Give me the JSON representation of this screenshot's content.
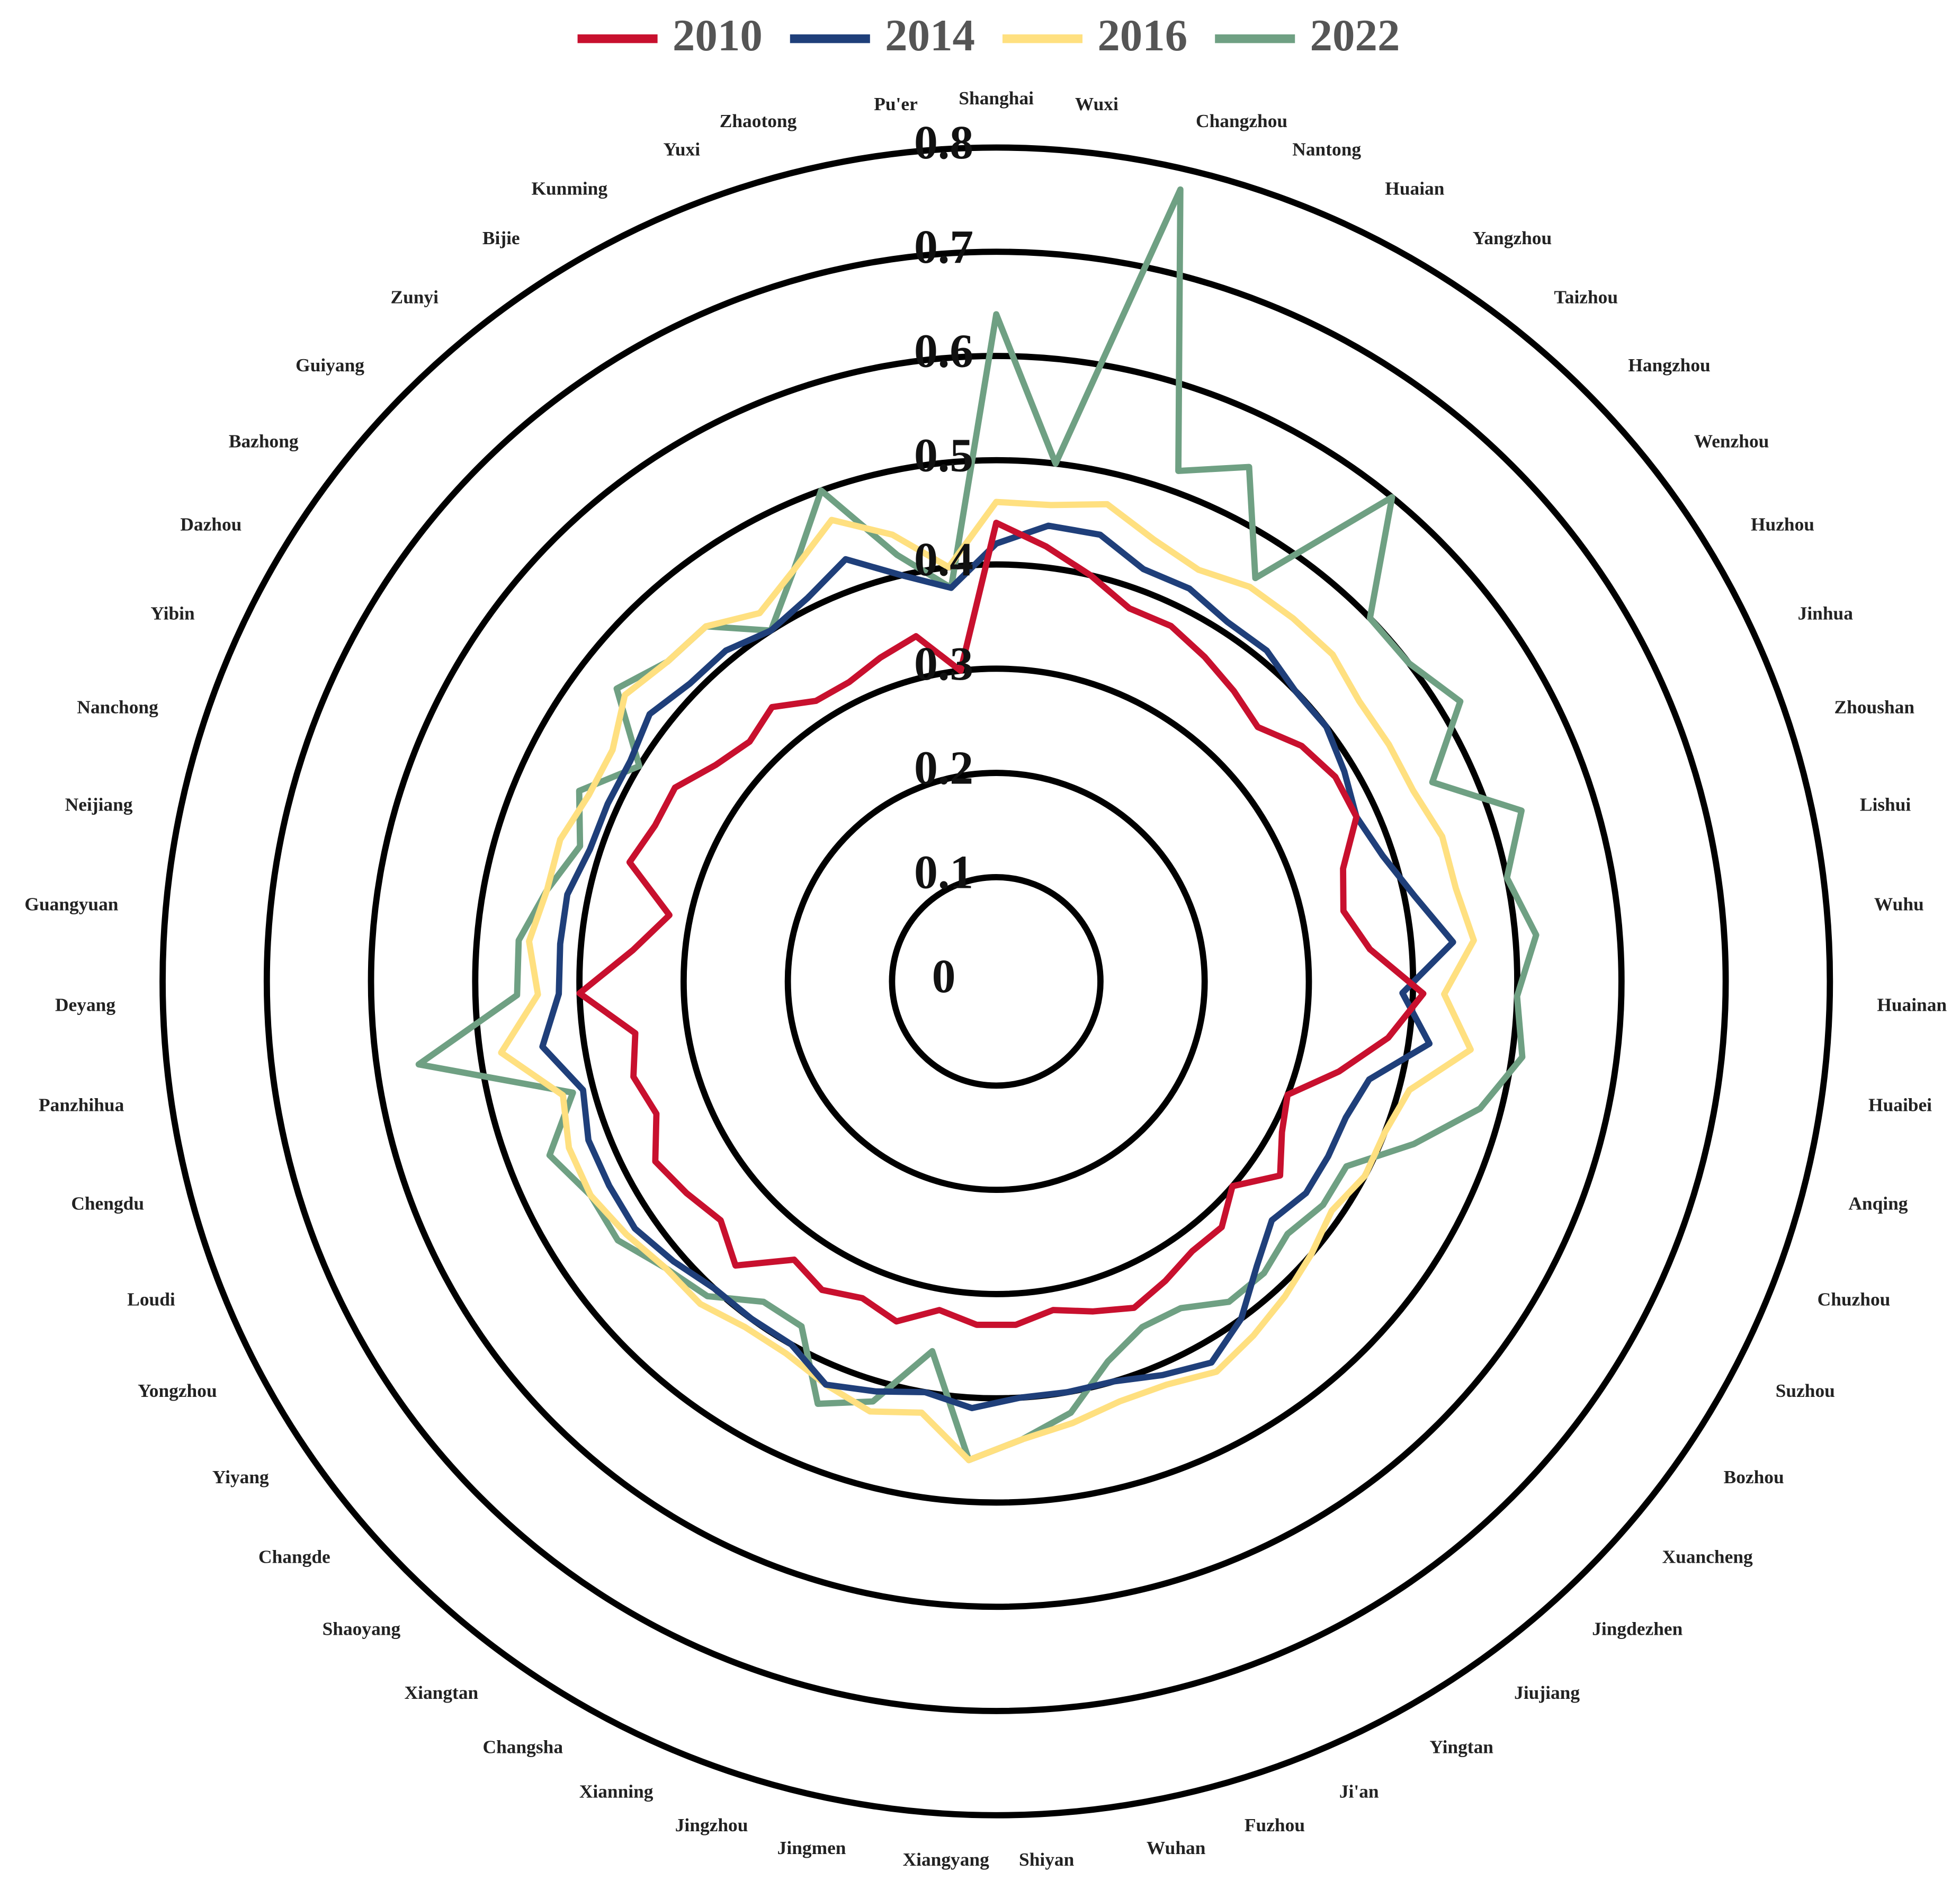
{
  "chart_data": {
    "type": "radar",
    "categories": [
      "Shanghai",
      "Wuxi",
      "Changzhou",
      "Nantong",
      "Huaian",
      "Yangzhou",
      "Taizhou",
      "Hangzhou",
      "Wenzhou",
      "Huzhou",
      "Jinhua",
      "Zhoushan",
      "Lishui",
      "Wuhu",
      "Huainan",
      "Huaibei",
      "Anqing",
      "Chuzhou",
      "Suzhou",
      "Bozhou",
      "Xuancheng",
      "Jingdezhen",
      "Jiujiang",
      "Yingtan",
      "Ji'an",
      "Fuzhou",
      "Wuhan",
      "Shiyan",
      "Xiangyang",
      "Jingmen",
      "Jingzhou",
      "Xianning",
      "Changsha",
      "Xiangtan",
      "Shaoyang",
      "Changde",
      "Yiyang",
      "Yongzhou",
      "Loudi",
      "Chengdu",
      "Panzhihua",
      "Deyang",
      "Guangyuan",
      "Neijiang",
      "Nanchong",
      "Yibin",
      "Dazhou",
      "Bazhong",
      "Guiyang",
      "Zunyi",
      "Bijie",
      "Kunming",
      "Yuxi",
      "Zhaotong",
      "Pu'er"
    ],
    "series": [
      {
        "name": "2010",
        "color": "#c8102e",
        "values": [
          0.44,
          0.42,
          0.4,
          0.38,
          0.38,
          0.37,
          0.36,
          0.35,
          0.37,
          0.38,
          0.38,
          0.35,
          0.34,
          0.36,
          0.41,
          0.38,
          0.34,
          0.3,
          0.31,
          0.33,
          0.3,
          0.32,
          0.32,
          0.33,
          0.34,
          0.33,
          0.32,
          0.33,
          0.33,
          0.32,
          0.34,
          0.33,
          0.34,
          0.33,
          0.37,
          0.35,
          0.36,
          0.37,
          0.35,
          0.36,
          0.35,
          0.4,
          0.35,
          0.32,
          0.37,
          0.36,
          0.36,
          0.34,
          0.33,
          0.34,
          0.32,
          0.32,
          0.33,
          0.34,
          0.3
        ]
      },
      {
        "name": "2014",
        "color": "#1f3f7a",
        "values": [
          0.42,
          0.44,
          0.44,
          0.42,
          0.42,
          0.41,
          0.41,
          0.4,
          0.4,
          0.39,
          0.38,
          0.39,
          0.41,
          0.44,
          0.39,
          0.42,
          0.37,
          0.36,
          0.36,
          0.36,
          0.35,
          0.37,
          0.4,
          0.42,
          0.41,
          0.4,
          0.4,
          0.4,
          0.41,
          0.4,
          0.41,
          0.42,
          0.4,
          0.4,
          0.4,
          0.41,
          0.42,
          0.42,
          0.42,
          0.41,
          0.44,
          0.42,
          0.42,
          0.42,
          0.41,
          0.41,
          0.41,
          0.42,
          0.41,
          0.41,
          0.4,
          0.41,
          0.43,
          0.4,
          0.38
        ]
      },
      {
        "name": "2016",
        "color": "#ffe080",
        "values": [
          0.46,
          0.46,
          0.47,
          0.45,
          0.44,
          0.45,
          0.45,
          0.45,
          0.44,
          0.44,
          0.44,
          0.45,
          0.45,
          0.46,
          0.43,
          0.46,
          0.41,
          0.4,
          0.4,
          0.39,
          0.4,
          0.41,
          0.42,
          0.43,
          0.42,
          0.42,
          0.43,
          0.44,
          0.46,
          0.42,
          0.43,
          0.42,
          0.41,
          0.41,
          0.42,
          0.42,
          0.43,
          0.44,
          0.44,
          0.43,
          0.48,
          0.44,
          0.45,
          0.44,
          0.44,
          0.43,
          0.43,
          0.45,
          0.44,
          0.44,
          0.42,
          0.44,
          0.47,
          0.44,
          0.4
        ]
      },
      {
        "name": "2022",
        "color": "#6fa083",
        "values": [
          0.64,
          0.5,
          0.78,
          0.52,
          0.55,
          0.46,
          0.6,
          0.5,
          0.5,
          0.52,
          0.46,
          0.53,
          0.5,
          0.52,
          0.5,
          0.51,
          0.48,
          0.43,
          0.38,
          0.38,
          0.37,
          0.38,
          0.38,
          0.36,
          0.36,
          0.38,
          0.42,
          0.44,
          0.46,
          0.36,
          0.42,
          0.44,
          0.38,
          0.38,
          0.41,
          0.42,
          0.44,
          0.44,
          0.46,
          0.42,
          0.56,
          0.46,
          0.46,
          0.44,
          0.42,
          0.44,
          0.4,
          0.46,
          0.44,
          0.44,
          0.4,
          0.44,
          0.5,
          0.42,
          0.38
        ]
      }
    ],
    "ylim": [
      0,
      0.8
    ],
    "yticks": [
      0,
      0.1,
      0.2,
      0.3,
      0.4,
      0.5,
      0.6,
      0.7,
      0.8
    ],
    "grid": true,
    "legend": "top"
  }
}
